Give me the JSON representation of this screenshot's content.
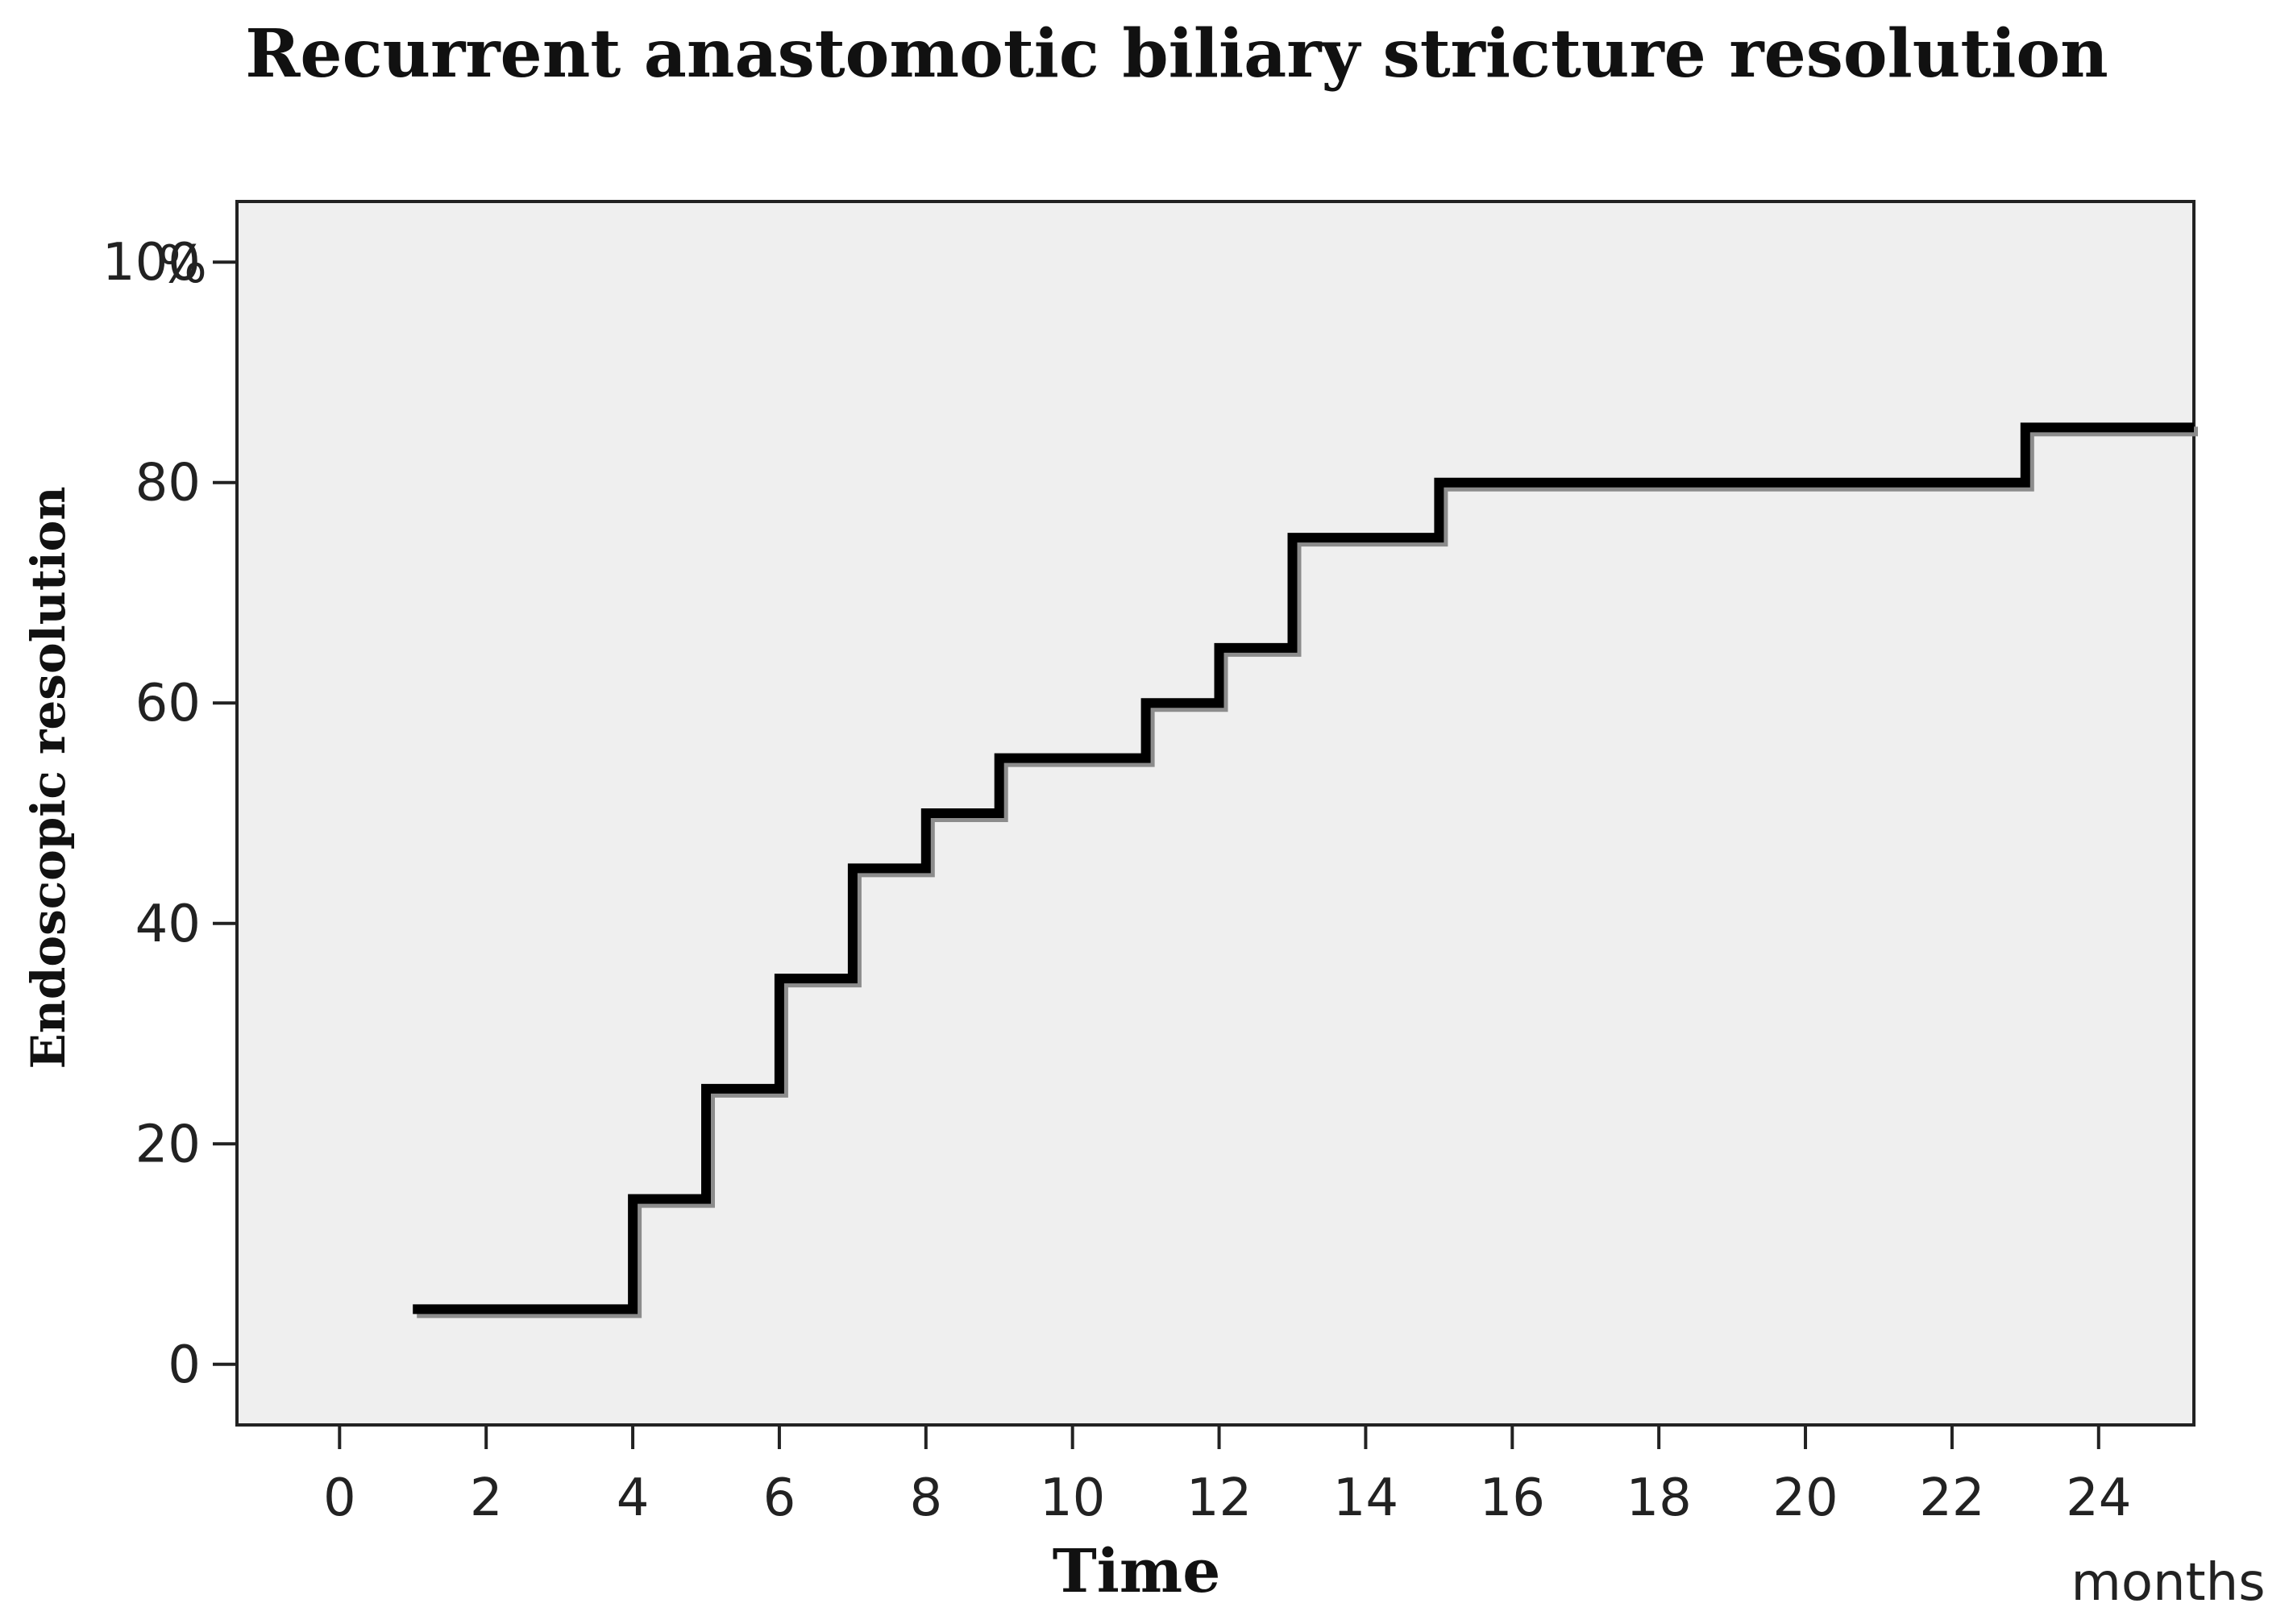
{
  "chart_data": {
    "type": "line",
    "step": true,
    "title": "Recurrent anastomotic biliary stricture resolution",
    "xlabel": "Time",
    "ylabel": "Endoscopic resolution",
    "x_unit": "months",
    "y_unit": "%",
    "xlim": [
      -1.4,
      25.3
    ],
    "ylim": [
      -5.5,
      105.5
    ],
    "x_ticks": [
      0,
      2,
      4,
      6,
      8,
      10,
      12,
      14,
      16,
      18,
      20,
      22,
      24
    ],
    "y_ticks": [
      0,
      20,
      40,
      60,
      80,
      100
    ],
    "y_tick_labels": [
      "0",
      "20",
      "40",
      "60",
      "80",
      "100"
    ],
    "grid": false,
    "legend": "none",
    "series": [
      {
        "x": [
          1,
          4,
          4,
          5,
          5,
          6,
          6,
          7,
          7,
          8,
          8,
          9,
          9,
          11,
          11,
          12,
          12,
          13,
          13,
          15,
          15,
          23,
          23,
          25.3
        ],
        "y": [
          5,
          5,
          15,
          15,
          25,
          25,
          35,
          35,
          45,
          45,
          50,
          50,
          55,
          55,
          60,
          60,
          65,
          65,
          75,
          75,
          80,
          80,
          85,
          85
        ]
      }
    ]
  },
  "colors": {
    "plot_background": "#efefef",
    "line": "#000000",
    "line_shadow": "#8c8c8c",
    "axis": "#222222"
  }
}
